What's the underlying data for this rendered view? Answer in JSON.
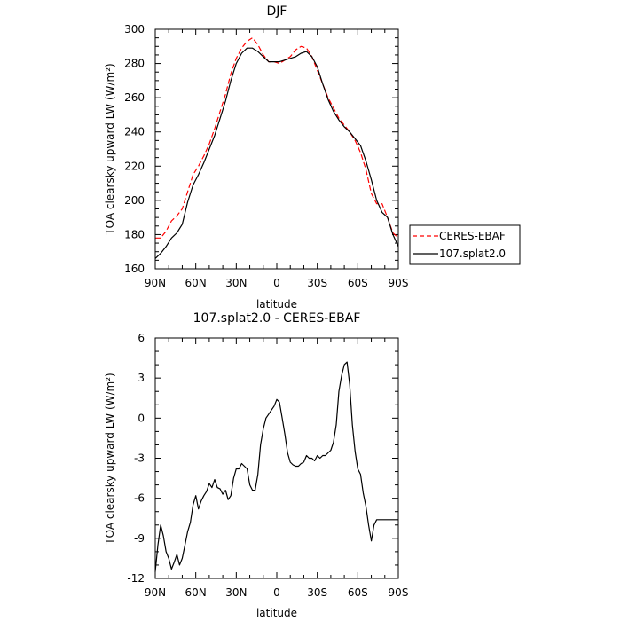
{
  "chart_data": [
    {
      "type": "line",
      "title": "DJF",
      "xlabel": "latitude",
      "ylabel": "TOA clearsky upward LW (W/m²)",
      "x_tick_labels": [
        "90N",
        "60N",
        "30N",
        "0",
        "30S",
        "60S",
        "90S"
      ],
      "x_ticks": [
        90,
        60,
        30,
        0,
        -30,
        -60,
        -90
      ],
      "xlim": [
        90,
        -90
      ],
      "ylim": [
        160,
        300
      ],
      "y_ticks": [
        160,
        180,
        200,
        220,
        240,
        260,
        280,
        300
      ],
      "grid": false,
      "legend_position": "right",
      "series": [
        {
          "name": "CERES-EBAF",
          "color": "#ff0000",
          "style": "dashed",
          "x": [
            90,
            86,
            82,
            78,
            74,
            70,
            66,
            62,
            58,
            54,
            50,
            46,
            42,
            38,
            34,
            30,
            26,
            22,
            18,
            14,
            10,
            6,
            2,
            -2,
            -6,
            -10,
            -14,
            -18,
            -22,
            -26,
            -30,
            -34,
            -38,
            -42,
            -46,
            -50,
            -54,
            -58,
            -62,
            -66,
            -70,
            -74,
            -78,
            -82,
            -86,
            -90
          ],
          "y": [
            178,
            178,
            182,
            188,
            191,
            195,
            205,
            215,
            220,
            226,
            233,
            242,
            252,
            262,
            274,
            283,
            289,
            293,
            295,
            291,
            285,
            281,
            281,
            280,
            282,
            284,
            288,
            290,
            289,
            284,
            276,
            268,
            260,
            254,
            248,
            244,
            240,
            235,
            228,
            218,
            204,
            198,
            198,
            190,
            181,
            178
          ]
        },
        {
          "name": "107.splat2.0",
          "color": "#000000",
          "style": "solid",
          "x": [
            90,
            86,
            82,
            78,
            74,
            70,
            66,
            62,
            58,
            54,
            50,
            46,
            42,
            38,
            34,
            30,
            26,
            22,
            18,
            14,
            10,
            6,
            2,
            -2,
            -6,
            -10,
            -14,
            -18,
            -22,
            -26,
            -30,
            -34,
            -38,
            -42,
            -46,
            -50,
            -54,
            -58,
            -62,
            -66,
            -70,
            -74,
            -78,
            -82,
            -86,
            -90
          ],
          "y": [
            166,
            169,
            173,
            178,
            181,
            186,
            199,
            209,
            215,
            222,
            230,
            238,
            248,
            258,
            270,
            280,
            286,
            289,
            289,
            287,
            284,
            281,
            281,
            281,
            282,
            283,
            284,
            286,
            287,
            284,
            278,
            268,
            259,
            252,
            247,
            243,
            240,
            236,
            232,
            223,
            212,
            200,
            193,
            190,
            180,
            173
          ]
        }
      ]
    },
    {
      "type": "line",
      "title": "107.splat2.0 - CERES-EBAF",
      "xlabel": "latitude",
      "ylabel": "TOA clearsky upward LW (W/m²)",
      "x_tick_labels": [
        "90N",
        "60N",
        "30N",
        "0",
        "30S",
        "60S",
        "90S"
      ],
      "x_ticks": [
        90,
        60,
        30,
        0,
        -30,
        -60,
        -90
      ],
      "xlim": [
        90,
        -90
      ],
      "ylim": [
        -12,
        6
      ],
      "y_ticks": [
        -12,
        -9,
        -6,
        -3,
        0,
        3,
        6
      ],
      "grid": false,
      "series": [
        {
          "color": "#000000",
          "style": "solid",
          "x": [
            90,
            88,
            86,
            84,
            82,
            80,
            78,
            76,
            74,
            72,
            70,
            68,
            66,
            64,
            62,
            60,
            58,
            56,
            54,
            52,
            50,
            48,
            46,
            44,
            42,
            40,
            38,
            36,
            34,
            32,
            30,
            28,
            26,
            24,
            22,
            20,
            18,
            16,
            14,
            12,
            10,
            8,
            6,
            4,
            2,
            0,
            -2,
            -4,
            -6,
            -8,
            -10,
            -12,
            -14,
            -16,
            -18,
            -20,
            -22,
            -24,
            -26,
            -28,
            -30,
            -32,
            -34,
            -36,
            -38,
            -40,
            -42,
            -44,
            -46,
            -48,
            -50,
            -52,
            -54,
            -56,
            -58,
            -60,
            -62,
            -64,
            -66,
            -68,
            -70,
            -72,
            -74,
            -76,
            -78,
            -80,
            -82,
            -84,
            -86,
            -88,
            -90
          ],
          "y": [
            -11.5,
            -9.5,
            -8.0,
            -8.8,
            -10.0,
            -10.5,
            -11.3,
            -10.8,
            -10.2,
            -11.0,
            -10.5,
            -9.5,
            -8.5,
            -7.8,
            -6.5,
            -5.8,
            -6.8,
            -6.2,
            -5.8,
            -5.5,
            -4.9,
            -5.2,
            -4.6,
            -5.2,
            -5.3,
            -5.7,
            -5.4,
            -6.1,
            -5.8,
            -4.5,
            -3.8,
            -3.8,
            -3.4,
            -3.6,
            -3.8,
            -5.0,
            -5.4,
            -5.4,
            -4.2,
            -2.0,
            -0.8,
            0.0,
            0.3,
            0.6,
            0.9,
            1.4,
            1.2,
            0.0,
            -1.2,
            -2.6,
            -3.3,
            -3.5,
            -3.6,
            -3.6,
            -3.4,
            -3.3,
            -2.8,
            -3.0,
            -3.0,
            -3.2,
            -2.8,
            -3.0,
            -2.8,
            -2.8,
            -2.6,
            -2.4,
            -1.8,
            -0.5,
            2.0,
            3.2,
            4.0,
            4.2,
            2.5,
            -0.5,
            -2.5,
            -3.8,
            -4.2,
            -5.6,
            -6.6,
            -8.0,
            -9.2,
            -8.0,
            -7.6,
            -7.6,
            -7.6,
            -7.6,
            -7.6,
            -7.6,
            -7.6,
            -7.6,
            -7.6
          ]
        }
      ]
    }
  ]
}
